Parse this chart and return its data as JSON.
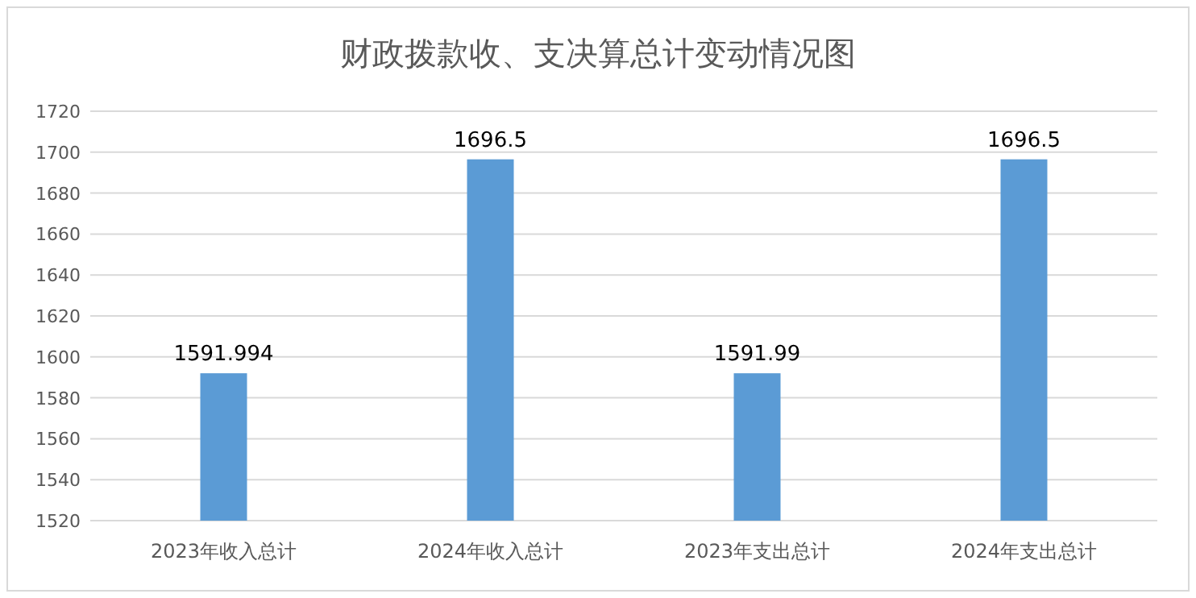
{
  "chart_data": {
    "type": "bar",
    "title": "财政拨款收、支决算总计变动情况图",
    "categories": [
      "2023年收入总计",
      "2024年收入总计",
      "2023年支出总计",
      "2024年支出总计"
    ],
    "values": [
      1591.994,
      1696.5,
      1591.99,
      1696.5
    ],
    "value_labels": [
      "1591.994",
      "1696.5",
      "1591.99",
      "1696.5"
    ],
    "color": "#5b9bd5",
    "ylim": [
      1520,
      1720
    ],
    "yticks": [
      1520,
      1540,
      1560,
      1580,
      1600,
      1620,
      1640,
      1660,
      1680,
      1700,
      1720
    ],
    "grid": "y"
  }
}
